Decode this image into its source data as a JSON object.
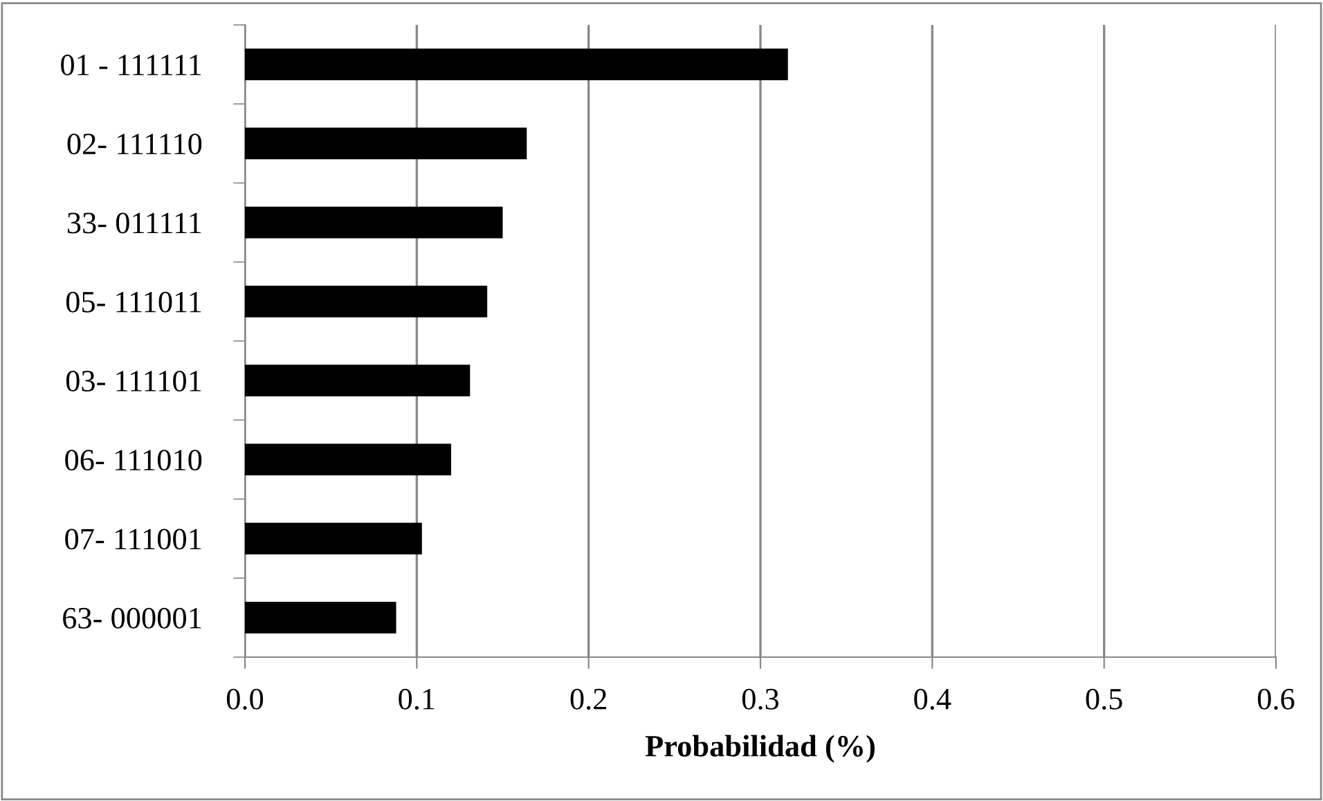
{
  "chart_data": {
    "type": "bar",
    "orientation": "horizontal",
    "xlabel": "Probabilidad (%)",
    "categories": [
      "01 - 111111",
      "02- 111110",
      "33- 011111",
      "05- 111011",
      "03- 111101",
      "06- 111010",
      "07- 111001",
      "63- 000001"
    ],
    "values": [
      0.316,
      0.164,
      0.15,
      0.141,
      0.131,
      0.12,
      0.103,
      0.088
    ],
    "color": "#000000",
    "xlim": [
      0,
      0.6
    ],
    "xticks": [
      {
        "value": 0,
        "label": "0.0"
      },
      0.1,
      0.2,
      0.3,
      0.4,
      0.5,
      0.6
    ],
    "grid": "x",
    "legend": false
  }
}
